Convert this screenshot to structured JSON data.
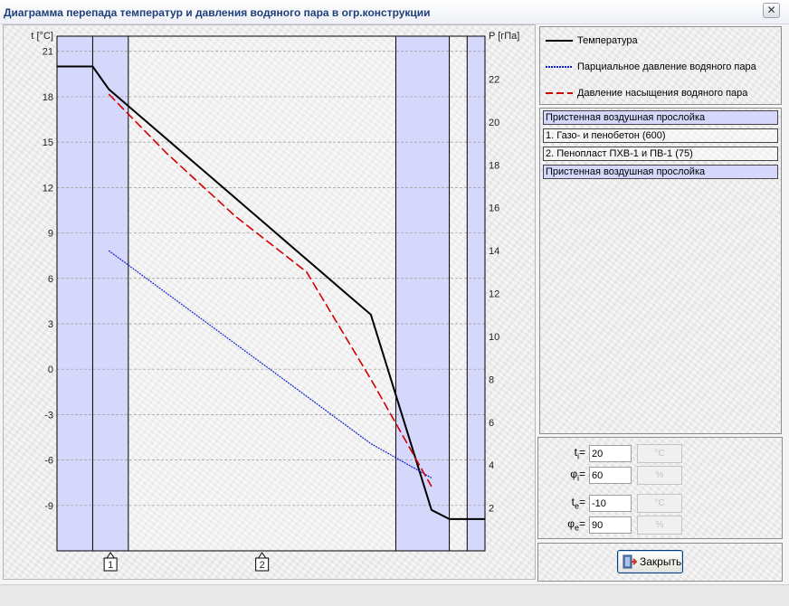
{
  "window": {
    "title": "Диаграмма перепада температур и давления водяного пара в огр.конструкции",
    "close_glyph": "✕"
  },
  "chart_data": {
    "type": "line",
    "left_axis": {
      "label": "t [°C]",
      "ticks": [
        21,
        18,
        15,
        12,
        9,
        6,
        3,
        0,
        -3,
        -6,
        -9
      ],
      "range": [
        -12,
        22
      ]
    },
    "right_axis": {
      "label": "P [гПа]",
      "ticks": [
        22,
        20,
        18,
        16,
        14,
        12,
        10,
        8,
        6,
        4,
        2
      ],
      "range": [
        0,
        24
      ]
    },
    "layer_markers": [
      "1",
      "2"
    ],
    "layer_bounds": [
      0,
      1,
      2,
      9.5,
      11,
      11.5
    ],
    "layer_total": 12,
    "air_layers": [
      [
        1,
        1.45
      ],
      [
        10.5,
        11
      ]
    ],
    "series": [
      {
        "name": "Температура",
        "axis": "left",
        "color": "#000000",
        "style": "solid",
        "x": [
          0,
          1,
          1.45,
          8.8,
          10.5,
          11,
          12
        ],
        "y": [
          20,
          20,
          18.5,
          3.6,
          -9.3,
          -9.9,
          -9.9
        ]
      },
      {
        "name": "Парциальное давление водяного пара",
        "axis": "right",
        "color": "#1022d0",
        "style": "dotted",
        "x": [
          1.45,
          8.8,
          10.5
        ],
        "y": [
          14.0,
          5.0,
          3.4
        ]
      },
      {
        "name": "Давление насыщения водяного пара",
        "axis": "right",
        "color": "#d10000",
        "style": "dashed",
        "x": [
          1.45,
          3.1,
          5.0,
          7.0,
          8.8,
          10.5
        ],
        "y": [
          21.3,
          18.5,
          15.6,
          13.0,
          8.0,
          3.0
        ]
      }
    ]
  },
  "legend": {
    "items": [
      {
        "label": "Температура",
        "color": "#000000",
        "style": "solid"
      },
      {
        "label": "Парциальное давление водяного пара",
        "color": "#1022d0",
        "style": "dotted"
      },
      {
        "label": "Давление насыщения водяного пара",
        "color": "#d10000",
        "style": "dashed"
      }
    ]
  },
  "layers": [
    {
      "label": "Пристенная воздушная прослойка",
      "type": "air"
    },
    {
      "label": "1. Газо- и пенобетон (600)",
      "type": "material"
    },
    {
      "label": "2. Пенопласт ПХВ-1 и ПВ-1 (75)",
      "type": "material"
    },
    {
      "label": "Пристенная воздушная прослойка",
      "type": "air"
    }
  ],
  "params": {
    "ti": {
      "symbol": "t",
      "sub": "i",
      "value": "20",
      "unit": "°C"
    },
    "phii": {
      "symbol": "φ",
      "sub": "i",
      "value": "60",
      "unit": "%"
    },
    "te": {
      "symbol": "t",
      "sub": "e",
      "value": "-10",
      "unit": "°C"
    },
    "phie": {
      "symbol": "φ",
      "sub": "e",
      "value": "90",
      "unit": "%"
    }
  },
  "buttons": {
    "close_label": "Закрыть"
  },
  "colors": {
    "air_layer": "#d6d8fb",
    "grid": "#9a9a9a",
    "title": "#1f3f7a"
  }
}
